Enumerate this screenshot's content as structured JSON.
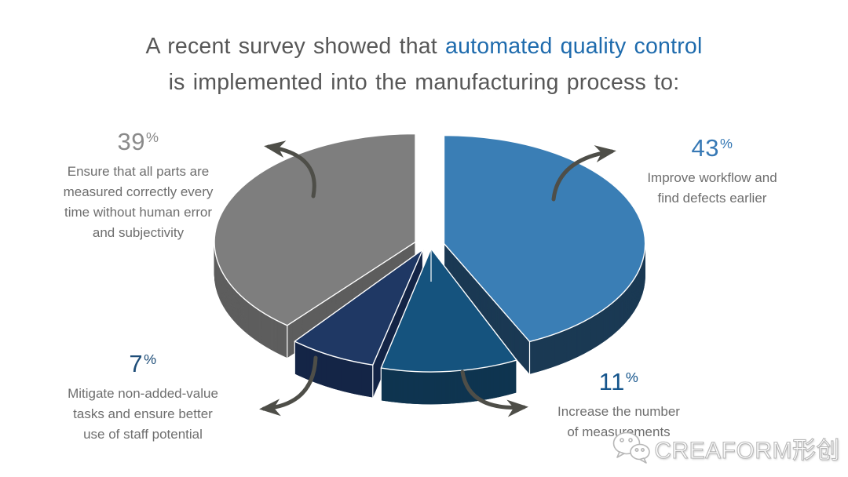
{
  "title": {
    "line1_prefix": "A recent survey showed that ",
    "line1_highlight": "automated quality control",
    "line2": "is implemented into the manufacturing process to:"
  },
  "labels": {
    "percent_sign": "%"
  },
  "chart_data": {
    "type": "pie",
    "style": "3d-exploded",
    "title": "A recent survey showed that automated quality control is implemented into the manufacturing process to:",
    "unit": "percent",
    "start_angle_deg": 0,
    "direction": "clockwise",
    "legend": "none",
    "slices": [
      {
        "value": 43,
        "label": "Improve workflow and find defects earlier",
        "color_top": "#3A7EB5",
        "color_side": "#1B3A54",
        "pct_color": "#3779B5"
      },
      {
        "value": 11,
        "label": "Increase the number of measurements",
        "color_top": "#15537E",
        "color_side": "#0F3550",
        "pct_color": "#15558C"
      },
      {
        "value": 7,
        "label": "Mitigate non-added-value tasks and ensure better use of staff potential",
        "color_top": "#1F3864",
        "color_side": "#152647",
        "pct_color": "#1F4E79"
      },
      {
        "value": 39,
        "label": "Ensure that all parts are measured correctly every time without human error and subjectivity",
        "color_top": "#7E7E7E",
        "color_side": "#5E5E5E",
        "pct_color": "#8A8A8A"
      }
    ]
  },
  "callouts": {
    "c39": {
      "pct": "39",
      "color": "#8A8A8A",
      "lines": [
        "Ensure that all parts are",
        "measured correctly every",
        "time without human error",
        "and subjectivity"
      ]
    },
    "c43": {
      "pct": "43",
      "color": "#3779B5",
      "lines": [
        "Improve workflow and",
        "find defects earlier"
      ]
    },
    "c7": {
      "pct": "7",
      "color": "#1F4E79",
      "lines": [
        "Mitigate non-added-value",
        "tasks and ensure better",
        "use of staff potential"
      ]
    },
    "c11": {
      "pct": "11",
      "color": "#15558C",
      "lines": [
        "Increase the number",
        "of measurements"
      ]
    }
  },
  "watermark": {
    "text": "CREAFORM形创",
    "icon": "wechat-icon"
  },
  "colors": {
    "background": "#FFFFFF",
    "title_text": "#575757",
    "title_highlight": "#1E6BAD",
    "callout_text": "#6E6E6E",
    "arrow": "#4E4E48",
    "watermark_outline": "#B7B7B7"
  }
}
